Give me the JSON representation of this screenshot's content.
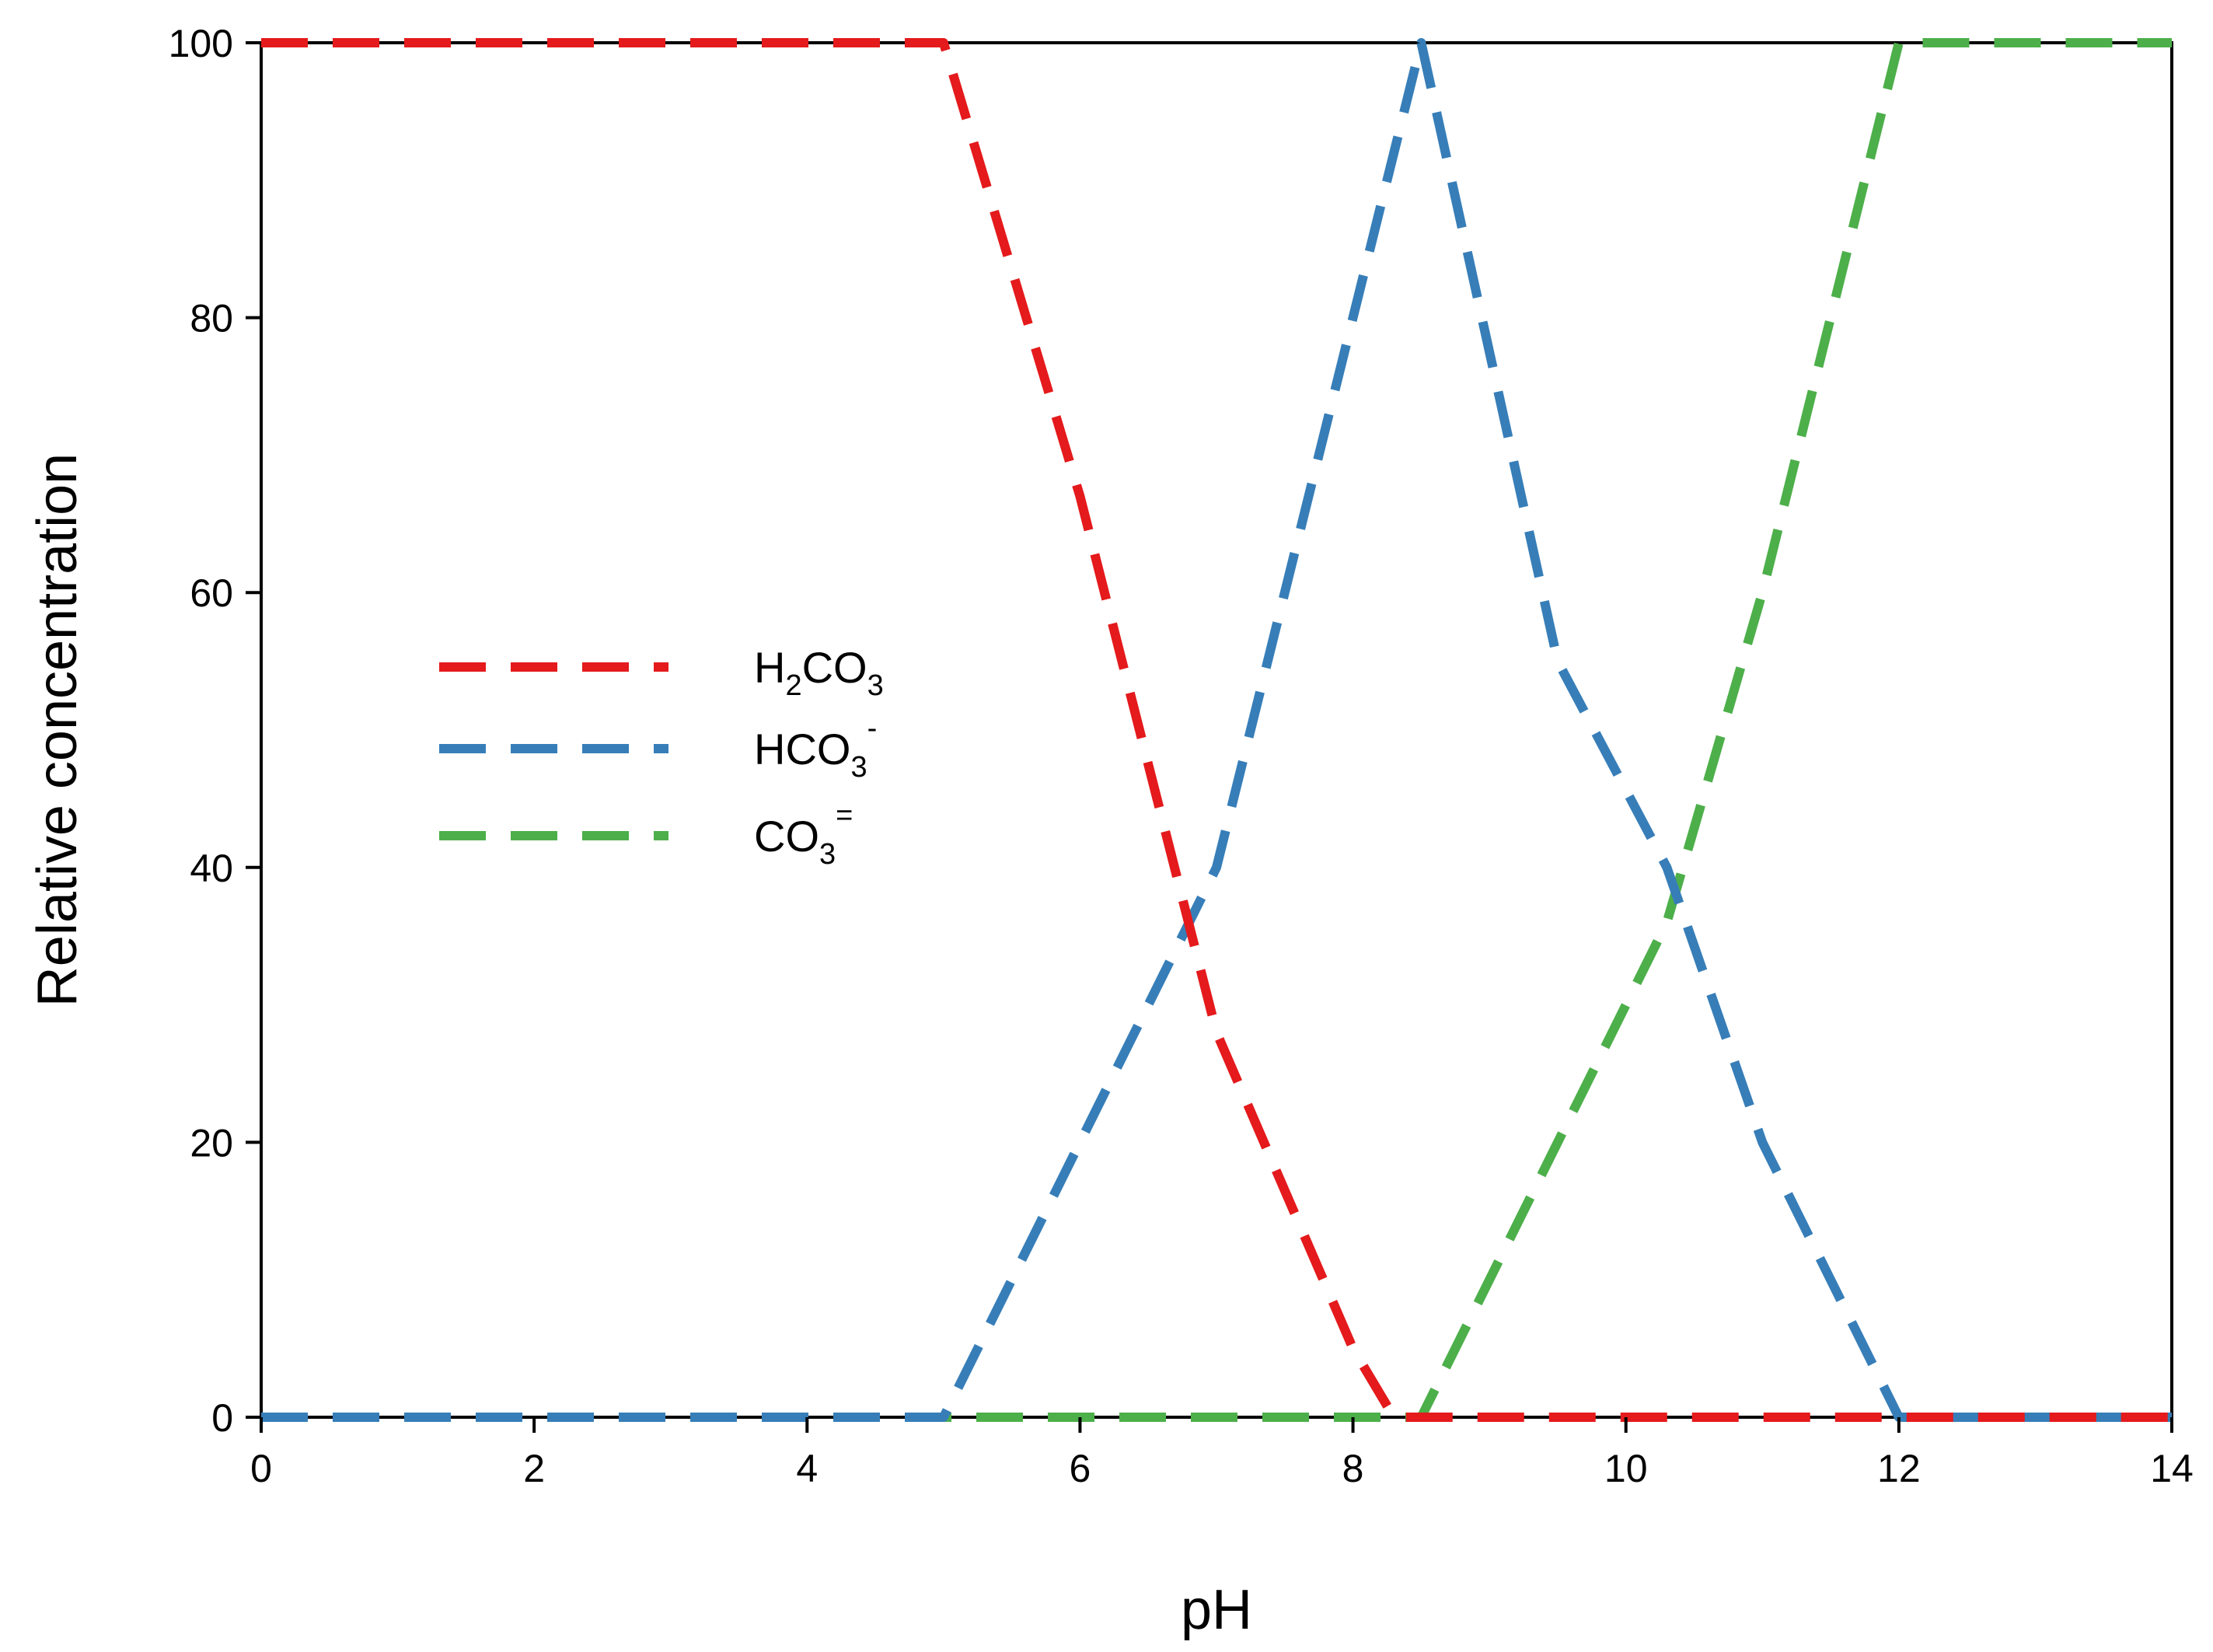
{
  "chart_data": {
    "type": "line",
    "title": "",
    "xlabel": "pH",
    "ylabel": "Relative concentration",
    "xlim": [
      0,
      14
    ],
    "ylim": [
      0,
      100
    ],
    "xticks": [
      0,
      2,
      4,
      6,
      8,
      10,
      12,
      14
    ],
    "yticks": [
      0,
      20,
      40,
      60,
      80,
      100
    ],
    "grid": false,
    "legend_position": "center-left",
    "line_style": "dashed",
    "series": [
      {
        "name": "H2CO3",
        "label_main": "H",
        "label_sub": "2",
        "label_main2": "CO",
        "label_sub2": "3",
        "label_sup": "",
        "color": "#e41a1c",
        "x": [
          0,
          5.0,
          6.0,
          7.0,
          8.0,
          8.3,
          14
        ],
        "y": [
          100,
          100,
          67,
          28,
          5,
          0,
          0
        ]
      },
      {
        "name": "HCO3-",
        "label_main": "HCO",
        "label_sub": "3",
        "label_main2": "",
        "label_sub2": "",
        "label_sup": "-",
        "color": "#377eb8",
        "x": [
          0,
          5.0,
          6.0,
          7.0,
          8.0,
          8.5,
          9.5,
          10.3,
          11.0,
          12.0,
          14
        ],
        "y": [
          0,
          0,
          20,
          40,
          80,
          100,
          55,
          40,
          20,
          0,
          0
        ]
      },
      {
        "name": "CO3=",
        "label_main": "CO",
        "label_sub": "3",
        "label_main2": "",
        "label_sub2": "",
        "label_sup": "=",
        "color": "#4daf4a",
        "x": [
          0,
          8.5,
          9.5,
          10.3,
          11.0,
          12.0,
          14
        ],
        "y": [
          0,
          0,
          20,
          36,
          60,
          100,
          100
        ]
      }
    ]
  }
}
